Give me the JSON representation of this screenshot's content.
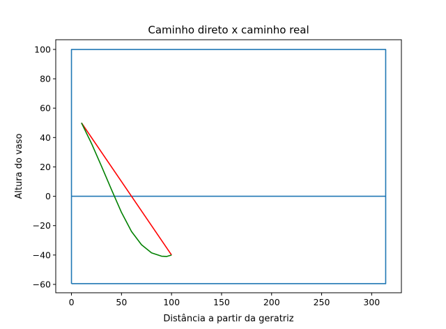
{
  "chart_data": {
    "type": "line",
    "title": "Caminho direto x caminho real",
    "xlabel": "Distância a partir da geratriz",
    "ylabel": "Altura do vaso",
    "xlim": [
      -15.7,
      329.7
    ],
    "ylim": [
      -65.7,
      106.6
    ],
    "x_ticks": [
      0,
      50,
      100,
      150,
      200,
      250,
      300
    ],
    "y_ticks": [
      -60,
      -40,
      -20,
      0,
      20,
      40,
      60,
      80,
      100
    ],
    "x_tick_labels": [
      "0",
      "50",
      "100",
      "150",
      "200",
      "250",
      "300"
    ],
    "y_tick_labels": [
      "−60",
      "−40",
      "−20",
      "0",
      "20",
      "40",
      "60",
      "80",
      "100"
    ],
    "grid": false,
    "legend": "none",
    "series": [
      {
        "color": "#1f77b4",
        "points": [
          [
            0,
            -59.5
          ],
          [
            314,
            -59.5
          ],
          [
            314,
            100
          ],
          [
            0,
            100
          ],
          [
            0,
            -59.5
          ]
        ]
      },
      {
        "color": "#1f77b4",
        "points": [
          [
            0,
            0
          ],
          [
            314,
            0
          ]
        ]
      },
      {
        "color": "#ff0000",
        "points": [
          [
            10,
            50
          ],
          [
            100,
            -40
          ]
        ]
      },
      {
        "color": "#008000",
        "points": [
          [
            10,
            50
          ],
          [
            20,
            36
          ],
          [
            30,
            20.5
          ],
          [
            40,
            4.5
          ],
          [
            50,
            -11
          ],
          [
            60,
            -24
          ],
          [
            70,
            -33
          ],
          [
            80,
            -38.5
          ],
          [
            90,
            -40.8
          ],
          [
            95,
            -41
          ],
          [
            100,
            -40
          ]
        ]
      }
    ]
  }
}
